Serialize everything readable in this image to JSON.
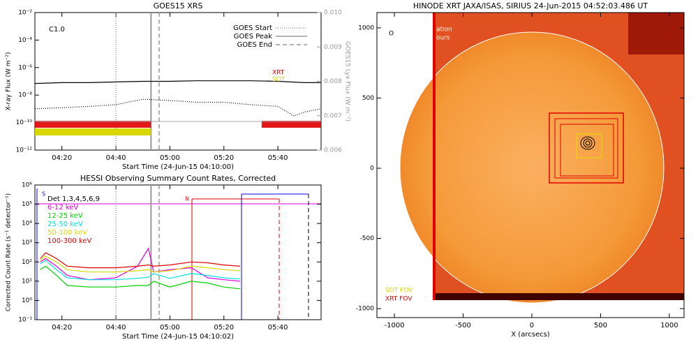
{
  "chart_data": [
    {
      "type": "line",
      "title": "GOES15 XRS",
      "xlabel": "Start Time (24-Jun-15 04:10:00)",
      "ylabel": "X-ray Flux (W m⁻²)",
      "y2label": "GOES15 Lyx Flux (W m⁻²)",
      "log_y": true,
      "xlim": [
        "04:10",
        "05:56"
      ],
      "xticks": [
        "04:20",
        "04:40",
        "05:00",
        "05:20",
        "05:40"
      ],
      "ylim": [
        1e-12,
        0.01
      ],
      "yticks": [
        {
          "value": 1e-12,
          "label": "10⁻¹²"
        },
        {
          "value": 1e-10,
          "label": "10⁻¹⁰"
        },
        {
          "value": 1e-08,
          "label": "10⁻⁸"
        },
        {
          "value": 1e-06,
          "label": "10⁻⁶"
        },
        {
          "value": 0.0001,
          "label": "10⁻⁴"
        },
        {
          "value": 0.01,
          "label": "10⁻²"
        }
      ],
      "y2lim": [
        0.006,
        0.01
      ],
      "y2ticks": [
        0.006,
        0.007,
        0.008,
        0.009,
        {
          "value": 0.01,
          "label": "0.010"
        }
      ],
      "annotations": [
        "C1.0",
        "XRT",
        "SOT"
      ],
      "vlines": [
        {
          "name": "GOES Start",
          "x": "04:40",
          "style": "dotted"
        },
        {
          "name": "GOES Peak",
          "x": "04:53",
          "style": "solid"
        },
        {
          "name": "GOES End",
          "x": "04:56",
          "style": "dashed"
        }
      ],
      "coverage": [
        {
          "color": "#e00000",
          "spans": [
            [
              "04:10",
              "04:53"
            ],
            [
              "05:34",
              "05:56"
            ]
          ]
        },
        {
          "color": "#d8d800",
          "spans": [
            [
              "04:10",
              "04:53"
            ]
          ]
        }
      ],
      "series": [
        {
          "color": "#000000",
          "style": "solid",
          "x": [
            "04:10",
            "04:20",
            "04:30",
            "04:40",
            "04:50",
            "05:00",
            "05:10",
            "05:20",
            "05:30",
            "05:40",
            "05:50",
            "05:56"
          ],
          "values": [
            7e-08,
            8e-08,
            8e-08,
            9e-08,
            1e-07,
            1e-07,
            1.1e-07,
            1.1e-07,
            1.1e-07,
            1e-07,
            8e-08,
            8e-08
          ]
        },
        {
          "color": "#000000",
          "style": "dotted",
          "x": [
            "04:10",
            "04:20",
            "04:30",
            "04:40",
            "04:50",
            "05:00",
            "05:10",
            "05:20",
            "05:30",
            "05:40",
            "05:46",
            "05:50",
            "05:56"
          ],
          "values": [
            1e-09,
            1.2e-09,
            1.5e-09,
            2e-09,
            5e-09,
            4e-09,
            3e-09,
            3e-09,
            2e-09,
            1.5e-09,
            3e-10,
            6e-10,
            1e-09
          ]
        }
      ]
    },
    {
      "type": "line",
      "title": "HESSI Observing Summary Count Rates, Corrected",
      "xlabel": "Start Time (24-Jun-15 04:10:02)",
      "ylabel": "Corrected Count Rate (s⁻¹ detector⁻¹)",
      "log_y": true,
      "xlim": [
        "04:10",
        "05:56"
      ],
      "xticks": [
        "04:20",
        "04:40",
        "05:00",
        "05:20",
        "05:40"
      ],
      "ylim": [
        0.1,
        1000000
      ],
      "yticks": [
        {
          "value": 0.1,
          "label": "10⁻¹"
        },
        {
          "value": 1,
          "label": "10⁰"
        },
        {
          "value": 10,
          "label": "10¹"
        },
        {
          "value": 100,
          "label": "10²"
        },
        {
          "value": 1000,
          "label": "10³"
        },
        {
          "value": 10000,
          "label": "10⁴"
        },
        {
          "value": 100000,
          "label": "10⁵"
        },
        {
          "value": 1000000,
          "label": "10⁶"
        }
      ],
      "legend_title": "Det 1,3,4,5,6,9",
      "annotations": [
        "S",
        "N"
      ],
      "x": [
        "04:12",
        "04:14",
        "04:18",
        "04:22",
        "04:30",
        "04:40",
        "04:48",
        "04:52",
        "04:54",
        "05:00",
        "05:08",
        "05:14",
        "05:20",
        "05:26"
      ],
      "series": [
        {
          "name": "6-12 keV",
          "color": "#e000e0",
          "values": [
            100,
            150,
            60,
            20,
            12,
            15,
            60,
            500,
            30,
            40,
            50,
            15,
            12,
            10
          ]
        },
        {
          "name": "12-25 keV",
          "color": "#00d000",
          "values": [
            40,
            60,
            20,
            6,
            5,
            5,
            6,
            6,
            10,
            5,
            10,
            8,
            5,
            4
          ]
        },
        {
          "name": "25-50 keV",
          "color": "#00e0e0",
          "values": [
            80,
            120,
            40,
            15,
            12,
            12,
            14,
            16,
            25,
            14,
            25,
            20,
            15,
            13
          ]
        },
        {
          "name": "50-100 keV",
          "color": "#d8d800",
          "values": [
            120,
            200,
            100,
            40,
            30,
            30,
            35,
            40,
            30,
            35,
            60,
            50,
            40,
            35
          ]
        },
        {
          "name": "100-300 keV",
          "color": "#e00000",
          "values": [
            150,
            300,
            150,
            60,
            50,
            50,
            60,
            70,
            60,
            70,
            100,
            90,
            70,
            60
          ]
        }
      ]
    },
    {
      "type": "image",
      "title": "HINODE XRT JAXA/ISAS, SIRIUS 24-Jun-2015 04:52:03.486 UT",
      "xlabel": "X (arcsecs)",
      "xlim": [
        -1127,
        1107
      ],
      "xticks": [
        -1000,
        -500,
        0,
        500,
        1000
      ],
      "ylim": [
        -1064,
        1109
      ],
      "yticks": [
        -1000,
        -500,
        0,
        500,
        1000
      ],
      "annotations": [
        "O",
        "ation",
        "ours",
        "SOT FOV",
        "XRT FOV"
      ]
    }
  ]
}
